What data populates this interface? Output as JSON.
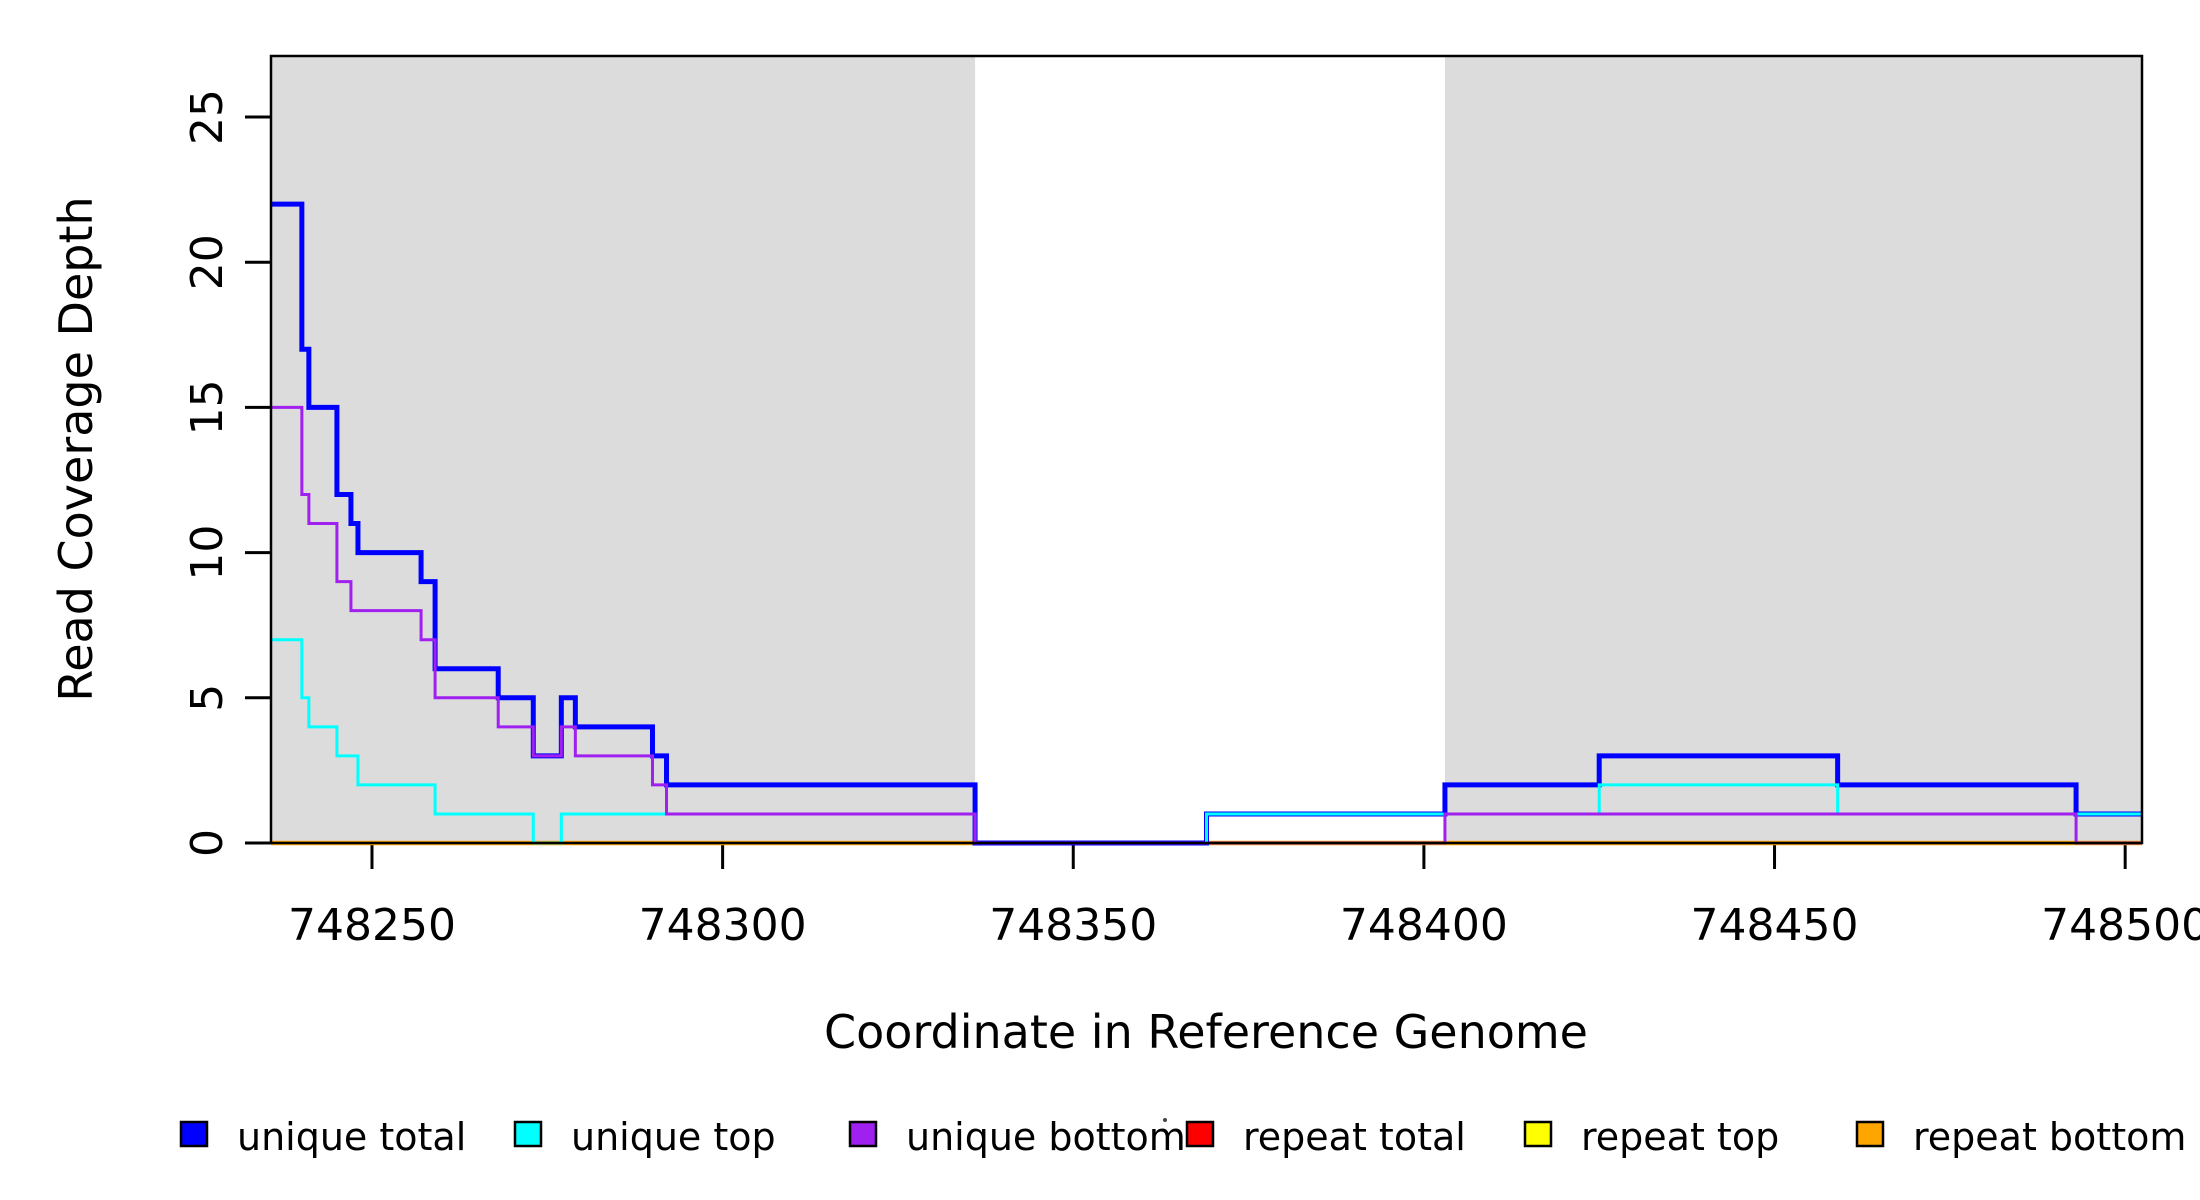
{
  "chart_data": {
    "type": "step",
    "title": "",
    "xlabel": "Coordinate in Reference Genome",
    "ylabel": "Read Coverage Depth",
    "xlim": [
      748235.6,
      748502.4
    ],
    "ylim": [
      0,
      27.1
    ],
    "grid": false,
    "background_color": "#ffffff",
    "shaded_region_color": "#dcdcdc",
    "axis_color": "#000000",
    "x_ticks": [
      748250,
      748300,
      748350,
      748400,
      748450,
      748500
    ],
    "x_tick_labels": [
      "748250",
      "748300",
      "748350",
      "748400",
      "748450",
      "748500"
    ],
    "y_ticks": [
      0,
      5,
      10,
      15,
      20,
      25
    ],
    "y_tick_labels": [
      "0",
      "5",
      "10",
      "15",
      "20",
      "25"
    ],
    "shaded_regions": [
      {
        "from": 748235.6,
        "to": 748336
      },
      {
        "from": 748403,
        "to": 748502.4
      }
    ],
    "series": [
      {
        "name": "repeat total",
        "color": "#ff0000",
        "width": 3,
        "steps": [
          [
            748235.6,
            0
          ],
          [
            748502.4,
            0
          ]
        ]
      },
      {
        "name": "repeat top",
        "color": "#ffff00",
        "width": 3,
        "steps": [
          [
            748235.6,
            0
          ],
          [
            748502.4,
            0
          ]
        ]
      },
      {
        "name": "repeat bottom",
        "color": "#ffa500",
        "width": 4.5,
        "steps": [
          [
            748235.6,
            0
          ],
          [
            748502.4,
            0
          ]
        ]
      },
      {
        "name": "unique total",
        "color": "#0000ff",
        "width": 5,
        "steps": [
          [
            748235.6,
            22
          ],
          [
            748240,
            17
          ],
          [
            748241,
            15
          ],
          [
            748245,
            12
          ],
          [
            748247,
            11
          ],
          [
            748248,
            10
          ],
          [
            748257,
            9
          ],
          [
            748259,
            6
          ],
          [
            748268,
            5
          ],
          [
            748273,
            3
          ],
          [
            748277,
            5
          ],
          [
            748279,
            4
          ],
          [
            748290,
            3
          ],
          [
            748292,
            2
          ],
          [
            748336,
            0
          ],
          [
            748369,
            1
          ],
          [
            748403,
            2
          ],
          [
            748425,
            3
          ],
          [
            748459,
            2
          ],
          [
            748493,
            1
          ],
          [
            748502.4,
            1
          ]
        ]
      },
      {
        "name": "unique top",
        "color": "#00ffff",
        "width": 3,
        "steps": [
          [
            748235.6,
            7
          ],
          [
            748240,
            5
          ],
          [
            748241,
            4
          ],
          [
            748245,
            3
          ],
          [
            748248,
            2
          ],
          [
            748259,
            1
          ],
          [
            748273,
            0
          ],
          [
            748277,
            1
          ],
          [
            748336,
            0
          ],
          [
            748369,
            1
          ],
          [
            748425,
            2
          ],
          [
            748459,
            1
          ],
          [
            748502.4,
            1
          ]
        ]
      },
      {
        "name": "unique bottom",
        "color": "#a020f0",
        "width": 3,
        "steps": [
          [
            748235.6,
            15
          ],
          [
            748240,
            12
          ],
          [
            748241,
            11
          ],
          [
            748245,
            9
          ],
          [
            748247,
            8
          ],
          [
            748257,
            7
          ],
          [
            748259,
            5
          ],
          [
            748268,
            4
          ],
          [
            748273,
            3
          ],
          [
            748277,
            4
          ],
          [
            748279,
            3
          ],
          [
            748290,
            2
          ],
          [
            748292,
            1
          ],
          [
            748336,
            0
          ],
          [
            748403,
            1
          ],
          [
            748493,
            0
          ],
          [
            748502.4,
            0
          ]
        ]
      }
    ],
    "legend": {
      "position": "bottom",
      "items": [
        {
          "label": "unique total",
          "color": "#0000ff"
        },
        {
          "label": "unique top",
          "color": "#00ffff"
        },
        {
          "label": "unique bottom",
          "color": "#a020f0"
        },
        {
          "label": "repeat total",
          "color": "#ff0000"
        },
        {
          "label": "repeat top",
          "color": "#ffff00"
        },
        {
          "label": "repeat bottom",
          "color": "#ffa500"
        }
      ]
    }
  }
}
